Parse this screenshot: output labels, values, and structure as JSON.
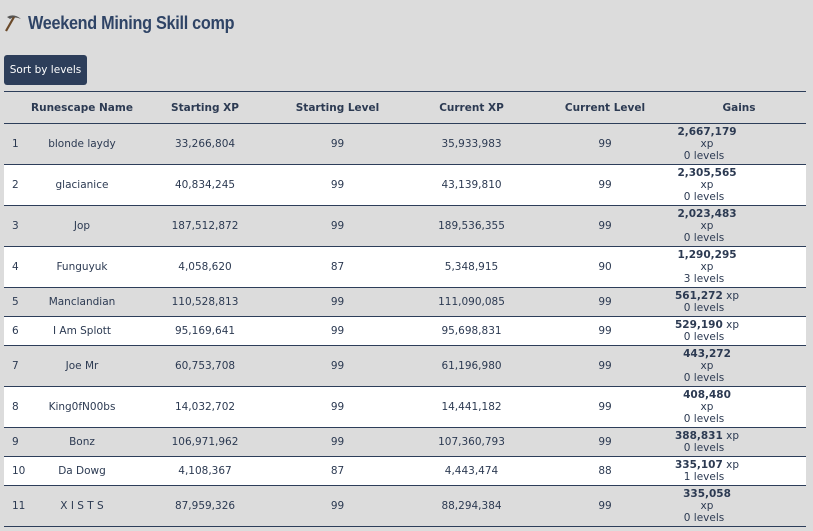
{
  "header": {
    "title": "Weekend Mining Skill comp"
  },
  "button": "Sort by levels",
  "table": {
    "columns": [
      "Runescape Name",
      "Starting XP",
      "Starting Level",
      "Current XP",
      "Current Level",
      "Gains"
    ],
    "rows": [
      [
        "1",
        "blonde laydy",
        "33,266,804",
        "99",
        "35,933,983",
        "99",
        {
          "xp": "2,667,179",
          "unit": "xp",
          "levels": "0 levels"
        }
      ],
      [
        "2",
        "glacianice",
        "40,834,245",
        "99",
        "43,139,810",
        "99",
        {
          "xp": "2,305,565",
          "unit": "xp",
          "levels": "0 levels"
        }
      ],
      [
        "3",
        "Jop",
        "187,512,872",
        "99",
        "189,536,355",
        "99",
        {
          "xp": "2,023,483",
          "unit": "xp",
          "levels": "0 levels"
        }
      ],
      [
        "4",
        "Funguyuk",
        "4,058,620",
        "87",
        "5,348,915",
        "90",
        {
          "xp": "1,290,295",
          "unit": "xp",
          "levels": "3 levels"
        }
      ],
      [
        "5",
        "Manclandian",
        "110,528,813",
        "99",
        "111,090,085",
        "99",
        {
          "xp": "561,272",
          "unit": "xp",
          "levels": "0 levels"
        }
      ],
      [
        "6",
        "I Am Splott",
        "95,169,641",
        "99",
        "95,698,831",
        "99",
        {
          "xp": "529,190",
          "unit": "xp",
          "levels": "0 levels"
        }
      ],
      [
        "7",
        "Joe Mr",
        "60,753,708",
        "99",
        "61,196,980",
        "99",
        {
          "xp": "443,272",
          "unit": "xp",
          "levels": "0 levels"
        }
      ],
      [
        "8",
        "King0fN00bs",
        "14,032,702",
        "99",
        "14,441,182",
        "99",
        {
          "xp": "408,480",
          "unit": "xp",
          "levels": "0 levels"
        }
      ],
      [
        "9",
        "Bonz",
        "106,971,962",
        "99",
        "107,360,793",
        "99",
        {
          "xp": "388,831",
          "unit": "xp",
          "levels": "0 levels"
        }
      ],
      [
        "10",
        "Da Dowg",
        "4,108,367",
        "87",
        "4,443,474",
        "88",
        {
          "xp": "335,107",
          "unit": "xp",
          "levels": "1 levels"
        }
      ],
      [
        "11",
        "X I S T S",
        "87,959,326",
        "99",
        "88,294,384",
        "99",
        {
          "xp": "335,058",
          "unit": "xp",
          "levels": "0 levels"
        }
      ]
    ]
  }
}
